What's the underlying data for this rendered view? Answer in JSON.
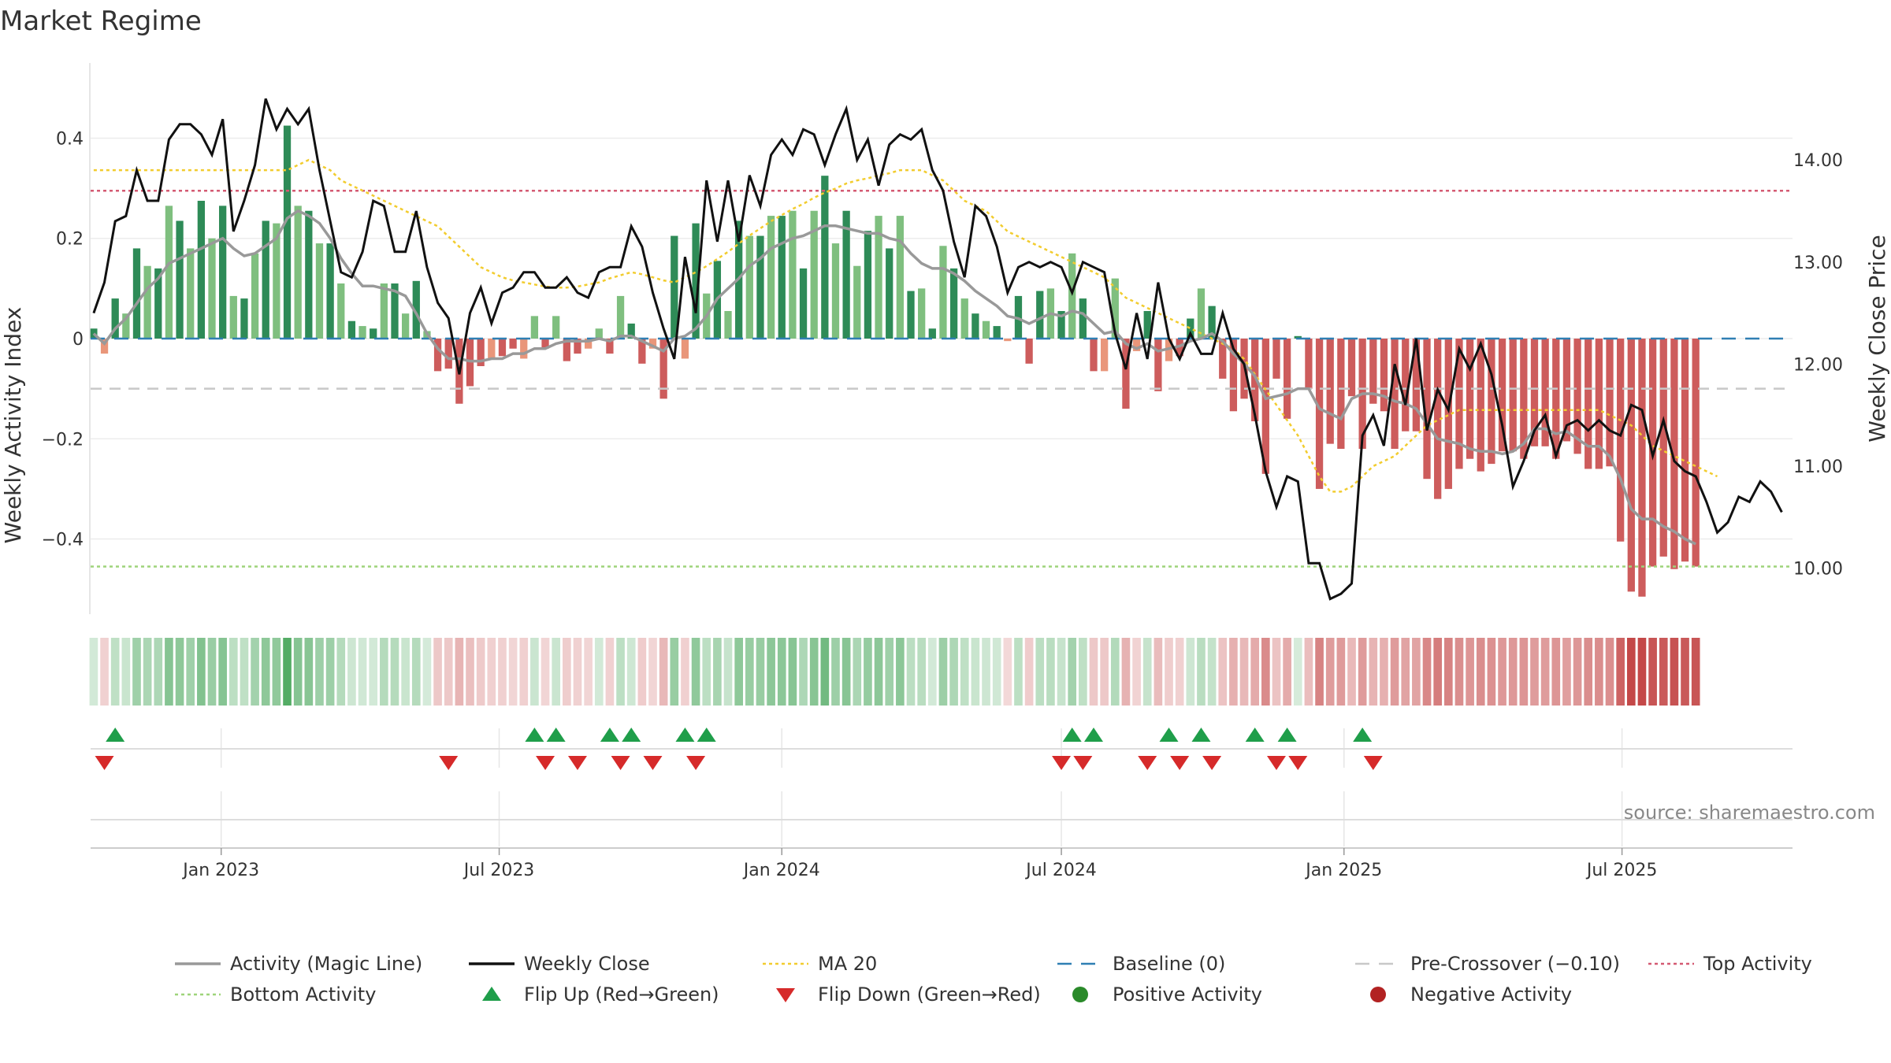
{
  "chart_data": {
    "type": "bar",
    "title": "Market Regime",
    "source": "source: sharemaestro.com",
    "ylabel_left": "Weekly Activity Index",
    "ylabel_right": "Weekly Close Price",
    "x_start": "2022-10-10",
    "x_step_days": 7,
    "x_range": [
      "2022-10-08",
      "2025-10-20"
    ],
    "ylim_left": [
      -0.55,
      0.55
    ],
    "ylim_right": [
      9.55,
      14.95
    ],
    "yticks_left": [
      {
        "v": 0.4,
        "label": "0.4"
      },
      {
        "v": 0.2,
        "label": "0.2"
      },
      {
        "v": 0,
        "label": "0"
      },
      {
        "v": -0.2,
        "label": "−0.2"
      },
      {
        "v": -0.4,
        "label": "−0.4"
      }
    ],
    "yticks_right": [
      {
        "v": 14,
        "label": "14.00"
      },
      {
        "v": 13,
        "label": "13.00"
      },
      {
        "v": 12,
        "label": "12.00"
      },
      {
        "v": 11,
        "label": "11.00"
      },
      {
        "v": 10,
        "label": "10.00"
      }
    ],
    "xticks": [
      {
        "date": "2023-01-01",
        "label": "Jan 2023"
      },
      {
        "date": "2023-07-01",
        "label": "Jul 2023"
      },
      {
        "date": "2024-01-01",
        "label": "Jan 2024"
      },
      {
        "date": "2024-07-01",
        "label": "Jul 2024"
      },
      {
        "date": "2025-01-01",
        "label": "Jan 2025"
      },
      {
        "date": "2025-07-01",
        "label": "Jul 2025"
      }
    ],
    "top_activity": 0.295,
    "bottom_activity": -0.455,
    "pre_crossover": -0.1,
    "baseline": 0,
    "activity": [
      0.02,
      -0.03,
      0.08,
      0.05,
      0.18,
      0.145,
      0.14,
      0.265,
      0.235,
      0.18,
      0.275,
      0.2,
      0.265,
      0.085,
      0.08,
      0.17,
      0.235,
      0.23,
      0.425,
      0.265,
      0.255,
      0.19,
      0.19,
      0.11,
      0.035,
      0.025,
      0.02,
      0.11,
      0.11,
      0.05,
      0.115,
      0.015,
      -0.065,
      -0.06,
      -0.13,
      -0.095,
      -0.055,
      -0.04,
      -0.035,
      -0.02,
      -0.04,
      0.045,
      -0.02,
      0.045,
      -0.045,
      -0.03,
      -0.02,
      0.02,
      -0.03,
      0.085,
      0.03,
      -0.05,
      -0.02,
      -0.12,
      0.205,
      -0.04,
      0.23,
      0.09,
      0.155,
      0.055,
      0.235,
      0.205,
      0.205,
      0.245,
      0.245,
      0.255,
      0.14,
      0.255,
      0.325,
      0.19,
      0.255,
      0.145,
      0.215,
      0.245,
      0.18,
      0.245,
      0.095,
      0.1,
      0.02,
      0.185,
      0.14,
      0.08,
      0.05,
      0.035,
      0.025,
      -0.005,
      0.085,
      -0.05,
      0.095,
      0.1,
      0.055,
      0.17,
      0.08,
      -0.065,
      -0.065,
      0.12,
      -0.14,
      -0.025,
      0.055,
      -0.105,
      -0.045,
      -0.035,
      0.04,
      0.1,
      0.065,
      -0.08,
      -0.145,
      -0.12,
      -0.165,
      -0.27,
      -0.08,
      -0.16,
      0.005,
      -0.1,
      -0.3,
      -0.21,
      -0.22,
      -0.115,
      -0.22,
      -0.13,
      -0.145,
      -0.22,
      -0.185,
      -0.185,
      -0.28,
      -0.32,
      -0.3,
      -0.26,
      -0.24,
      -0.265,
      -0.25,
      -0.225,
      -0.225,
      -0.24,
      -0.215,
      -0.215,
      -0.24,
      -0.205,
      -0.23,
      -0.26,
      -0.26,
      -0.255,
      -0.405,
      -0.505,
      -0.515,
      -0.455,
      -0.435,
      -0.46,
      -0.445,
      -0.455
    ],
    "activity_line": [
      0.01,
      -0.01,
      0.02,
      0.04,
      0.07,
      0.1,
      0.12,
      0.15,
      0.16,
      0.17,
      0.18,
      0.19,
      0.2,
      0.18,
      0.165,
      0.17,
      0.185,
      0.2,
      0.24,
      0.255,
      0.245,
      0.23,
      0.2,
      0.16,
      0.13,
      0.105,
      0.105,
      0.1,
      0.095,
      0.085,
      0.05,
      0.01,
      -0.02,
      -0.04,
      -0.04,
      -0.045,
      -0.045,
      -0.04,
      -0.04,
      -0.03,
      -0.03,
      -0.02,
      -0.02,
      -0.01,
      -0.005,
      -0.005,
      -0.005,
      0.0,
      -0.005,
      0.005,
      0.005,
      -0.005,
      -0.015,
      -0.025,
      0.0,
      0.005,
      0.02,
      0.045,
      0.08,
      0.1,
      0.12,
      0.145,
      0.16,
      0.18,
      0.19,
      0.2,
      0.205,
      0.215,
      0.225,
      0.225,
      0.22,
      0.215,
      0.21,
      0.21,
      0.2,
      0.195,
      0.17,
      0.15,
      0.14,
      0.14,
      0.13,
      0.115,
      0.095,
      0.08,
      0.065,
      0.045,
      0.04,
      0.03,
      0.04,
      0.05,
      0.045,
      0.055,
      0.05,
      0.03,
      0.01,
      0.015,
      -0.01,
      -0.02,
      -0.01,
      -0.025,
      -0.02,
      -0.015,
      -0.005,
      0.0,
      0.01,
      -0.005,
      -0.03,
      -0.05,
      -0.075,
      -0.12,
      -0.115,
      -0.11,
      -0.1,
      -0.1,
      -0.14,
      -0.15,
      -0.16,
      -0.12,
      -0.11,
      -0.11,
      -0.115,
      -0.125,
      -0.13,
      -0.14,
      -0.17,
      -0.2,
      -0.205,
      -0.21,
      -0.22,
      -0.225,
      -0.225,
      -0.23,
      -0.225,
      -0.21,
      -0.18,
      -0.18,
      -0.19,
      -0.185,
      -0.2,
      -0.215,
      -0.215,
      -0.235,
      -0.28,
      -0.34,
      -0.36,
      -0.36,
      -0.375,
      -0.385,
      -0.4,
      -0.41
    ],
    "close": [
      12.5,
      12.8,
      13.4,
      13.45,
      13.9,
      13.6,
      13.6,
      14.2,
      14.35,
      14.35,
      14.25,
      14.05,
      14.4,
      13.3,
      13.6,
      13.95,
      14.6,
      14.3,
      14.5,
      14.35,
      14.5,
      13.9,
      13.4,
      12.9,
      12.85,
      13.1,
      13.6,
      13.55,
      13.1,
      13.1,
      13.5,
      12.95,
      12.6,
      12.45,
      11.9,
      12.5,
      12.75,
      12.4,
      12.7,
      12.75,
      12.9,
      12.9,
      12.75,
      12.75,
      12.85,
      12.7,
      12.65,
      12.9,
      12.95,
      12.95,
      13.35,
      13.15,
      12.7,
      12.35,
      12.05,
      13.05,
      12.5,
      13.8,
      13.2,
      13.8,
      13.2,
      13.85,
      13.55,
      14.05,
      14.2,
      14.05,
      14.3,
      14.25,
      13.95,
      14.25,
      14.5,
      14.0,
      14.2,
      13.75,
      14.15,
      14.25,
      14.2,
      14.3,
      13.9,
      13.7,
      13.2,
      12.85,
      13.55,
      13.45,
      13.15,
      12.7,
      12.95,
      13.0,
      12.95,
      13.0,
      12.95,
      12.7,
      13.0,
      12.95,
      12.9,
      12.3,
      11.95,
      12.5,
      12.05,
      12.8,
      12.25,
      12.05,
      12.3,
      12.1,
      12.1,
      12.5,
      12.15,
      12.0,
      11.5,
      10.95,
      10.6,
      10.9,
      10.85,
      10.05,
      10.05,
      9.7,
      9.75,
      9.85,
      11.3,
      11.5,
      11.2,
      12.0,
      11.6,
      12.25,
      11.35,
      11.75,
      11.55,
      12.15,
      11.95,
      12.2,
      11.9,
      11.4,
      10.8,
      11.05,
      11.35,
      11.5,
      11.1,
      11.4,
      11.45,
      11.35,
      11.45,
      11.35,
      11.3,
      11.6,
      11.55,
      11.1,
      11.45,
      11.05,
      10.95,
      10.9,
      10.65,
      10.35,
      10.45,
      10.7,
      10.65,
      10.85,
      10.75,
      10.55
    ],
    "ma20": [
      13.9,
      13.9,
      13.9,
      13.9,
      13.9,
      13.9,
      13.9,
      13.9,
      13.9,
      13.9,
      13.9,
      13.9,
      13.9,
      13.9,
      13.9,
      13.9,
      13.9,
      13.9,
      13.9,
      13.95,
      14.0,
      13.95,
      13.9,
      13.8,
      13.75,
      13.7,
      13.65,
      13.6,
      13.55,
      13.5,
      13.45,
      13.4,
      13.35,
      13.25,
      13.15,
      13.05,
      12.95,
      12.9,
      12.85,
      12.82,
      12.8,
      12.78,
      12.76,
      12.75,
      12.75,
      12.76,
      12.78,
      12.8,
      12.84,
      12.87,
      12.9,
      12.88,
      12.85,
      12.82,
      12.8,
      12.85,
      12.9,
      12.96,
      13.03,
      13.1,
      13.18,
      13.26,
      13.33,
      13.4,
      13.46,
      13.52,
      13.57,
      13.63,
      13.68,
      13.72,
      13.77,
      13.8,
      13.82,
      13.85,
      13.87,
      13.9,
      13.9,
      13.9,
      13.85,
      13.8,
      13.7,
      13.6,
      13.55,
      13.5,
      13.4,
      13.3,
      13.25,
      13.2,
      13.15,
      13.1,
      13.05,
      13.0,
      12.95,
      12.9,
      12.85,
      12.75,
      12.65,
      12.6,
      12.55,
      12.5,
      12.45,
      12.4,
      12.35,
      12.3,
      12.25,
      12.2,
      12.15,
      12.05,
      11.9,
      11.75,
      11.6,
      11.45,
      11.3,
      11.1,
      10.9,
      10.75,
      10.75,
      10.8,
      10.9,
      11.0,
      11.05,
      11.1,
      11.2,
      11.3,
      11.4,
      11.45,
      11.5,
      11.55,
      11.55,
      11.55,
      11.55,
      11.55,
      11.55,
      11.55,
      11.55,
      11.55,
      11.55,
      11.55,
      11.55,
      11.55,
      11.55,
      11.5,
      11.45,
      11.4,
      11.3,
      11.2,
      11.15,
      11.1,
      11.05,
      11.0,
      10.95,
      10.9
    ],
    "flip_up": [
      2,
      41,
      43,
      48,
      50,
      55,
      57,
      91,
      93,
      100,
      103,
      108,
      111,
      118
    ],
    "flip_down": [
      1,
      33,
      42,
      45,
      49,
      52,
      56,
      90,
      92,
      98,
      101,
      104,
      110,
      112,
      119
    ],
    "legend": [
      {
        "label": "Activity (Magic Line)",
        "kind": "line",
        "color": "#999999"
      },
      {
        "label": "Weekly Close",
        "kind": "line",
        "color": "#111111"
      },
      {
        "label": "MA 20",
        "kind": "dotted",
        "color": "#f2cc2e"
      },
      {
        "label": "Baseline (0)",
        "kind": "dashed",
        "color": "#2f7fb3"
      },
      {
        "label": "Pre-Crossover (−0.10)",
        "kind": "dashed",
        "color": "#c8c8c8"
      },
      {
        "label": "Top Activity",
        "kind": "dotted",
        "color": "#d45a72"
      },
      {
        "label": "Bottom Activity",
        "kind": "dotted",
        "color": "#9ed47a"
      },
      {
        "label": "Flip Up (Red→Green)",
        "kind": "tri-up",
        "color": "#1f9e4a"
      },
      {
        "label": "Flip Down (Green→Red)",
        "kind": "tri-down",
        "color": "#d62a2a"
      },
      {
        "label": "Positive Activity",
        "kind": "dot",
        "color": "#2a8a2a"
      },
      {
        "label": "Negative Activity",
        "kind": "dot",
        "color": "#b22222"
      }
    ]
  },
  "colors": {
    "pos_strong": "#2e8b57",
    "pos_light": "#7fbf7f",
    "neg_strong": "#cd5c5c",
    "neg_light": "#e9967a",
    "baseline": "#2f7fb3"
  }
}
